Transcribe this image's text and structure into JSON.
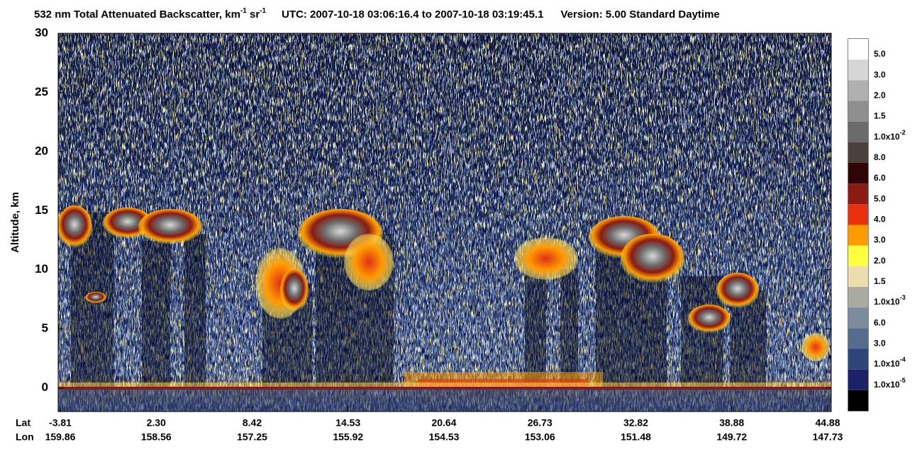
{
  "chart_data": {
    "type": "heatmap",
    "title": {
      "prefix": "532 nm Total Attenuated Backscatter, km",
      "unit_exp_1": "-1",
      "unit_mid": " sr",
      "unit_exp_2": "-1",
      "utc": "UTC:  2007-10-18 03:06:16.4  to  2007-10-18 03:19:45.1",
      "version": "Version: 5.00  Standard  Daytime"
    },
    "y_label": "Altitude, km",
    "ylim": [
      -2,
      30
    ],
    "yticks": [
      0,
      5,
      10,
      15,
      20,
      25,
      30
    ],
    "x_rows": {
      "lat": "Lat",
      "lon": "Lon"
    },
    "categories": {
      "lat": [
        "-3.81",
        "2.30",
        "8.42",
        "14.53",
        "20.64",
        "26.73",
        "32.82",
        "38.88",
        "44.88"
      ],
      "lon": [
        "159.86",
        "158.56",
        "157.25",
        "155.92",
        "154.53",
        "153.06",
        "151.48",
        "149.72",
        "147.73"
      ]
    },
    "colorbar": {
      "colors": [
        "#ffffff",
        "#d6d6d6",
        "#b0b0b0",
        "#8f8f8f",
        "#6b6b6b",
        "#4a403d",
        "#300505",
        "#8a1a14",
        "#e8300e",
        "#ff9a00",
        "#ffff40",
        "#ecdcae",
        "#a9aaa0",
        "#7d8c9c",
        "#566c8e",
        "#2f4478",
        "#1d2268",
        "#000000"
      ],
      "labels": [
        {
          "base": "5.0"
        },
        {
          "base": "3.0"
        },
        {
          "base": "2.0"
        },
        {
          "base": "1.5"
        },
        {
          "base": "1.0x10",
          "exp": "-2"
        },
        {
          "base": "8.0"
        },
        {
          "base": "6.0"
        },
        {
          "base": "5.0"
        },
        {
          "base": "4.0"
        },
        {
          "base": "3.0"
        },
        {
          "base": "2.0"
        },
        {
          "base": "1.5"
        },
        {
          "base": "1.0x10",
          "exp": "-3"
        },
        {
          "base": "6.0"
        },
        {
          "base": "3.0"
        },
        {
          "base": "1.0x10",
          "exp": "-4"
        },
        {
          "base": "1.0x10",
          "exp": "-5"
        }
      ]
    }
  }
}
